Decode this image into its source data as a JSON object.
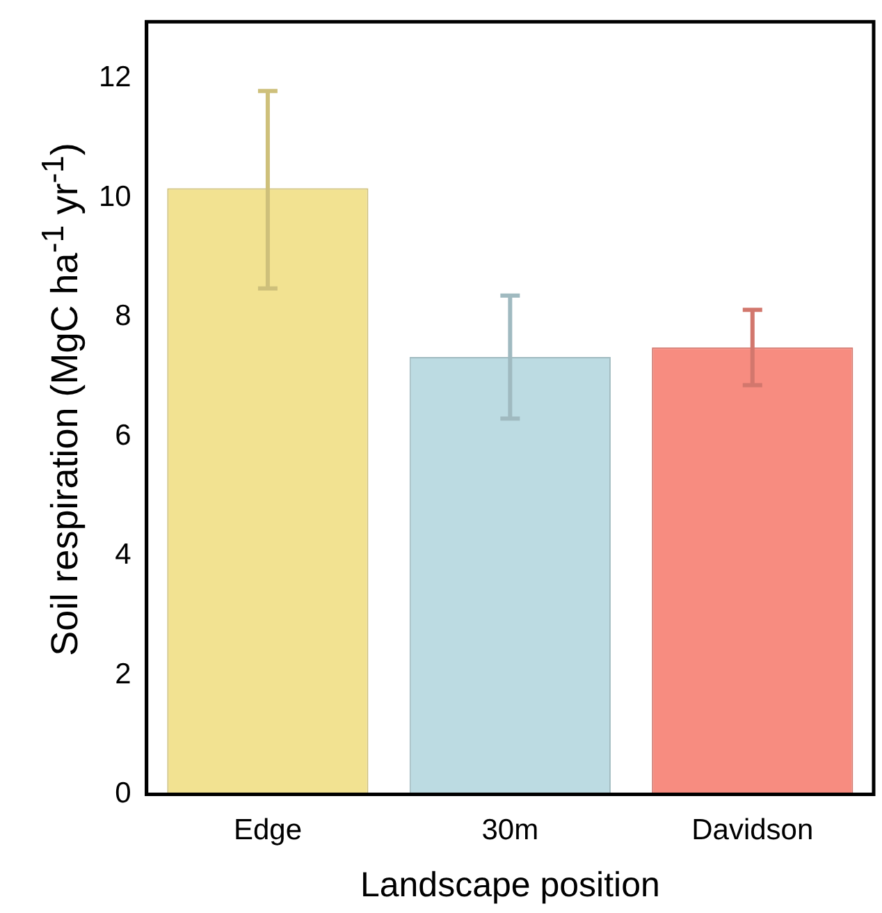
{
  "chart_data": {
    "type": "bar",
    "xlabel": "Landscape position",
    "ylabel": "Soil respiration (MgC ha$^{-1}$ yr$^{-1}$)",
    "categories": [
      "Edge",
      "30m",
      "Davidson"
    ],
    "values": [
      10.16,
      7.33,
      7.49
    ],
    "colors": [
      "#f2e291",
      "#bcdbe2",
      "#f78c80"
    ],
    "errors": [
      [
        8.48,
        11.79
      ],
      [
        6.3,
        8.36
      ],
      [
        6.86,
        8.12
      ]
    ],
    "ylim": [
      0,
      12.95
    ],
    "yticks": [
      0,
      2,
      4,
      6,
      8,
      10,
      12
    ],
    "grid": false,
    "legend": false
  }
}
